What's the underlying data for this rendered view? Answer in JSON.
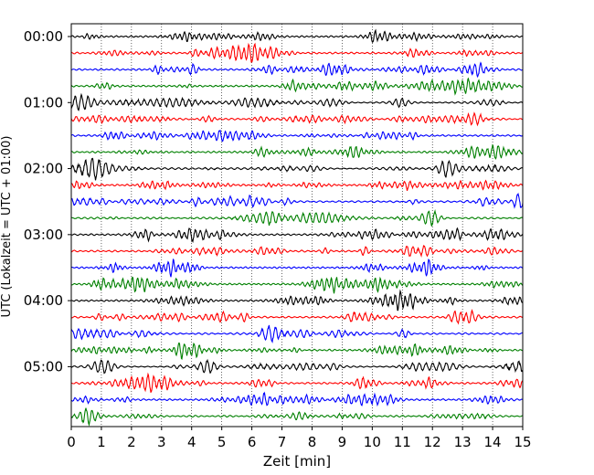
{
  "chart_data": {
    "type": "line",
    "title": "",
    "xlabel": "Zeit  [min]",
    "ylabel": "UTC (Lokalzeit = UTC + 01:00)",
    "xlim": [
      0,
      15
    ],
    "x_ticks": [
      0,
      1,
      2,
      3,
      4,
      5,
      6,
      7,
      8,
      9,
      10,
      11,
      12,
      13,
      14,
      15
    ],
    "y_tick_labels": [
      "00:00",
      "01:00",
      "02:00",
      "03:00",
      "04:00",
      "05:00"
    ],
    "grid": "vertical dotted at each minute",
    "legend": "none",
    "trace_interval_min": 15,
    "trace_count": 24,
    "trace_colors": [
      "#000000",
      "#ff0000",
      "#0000ff",
      "#008000"
    ]
  }
}
